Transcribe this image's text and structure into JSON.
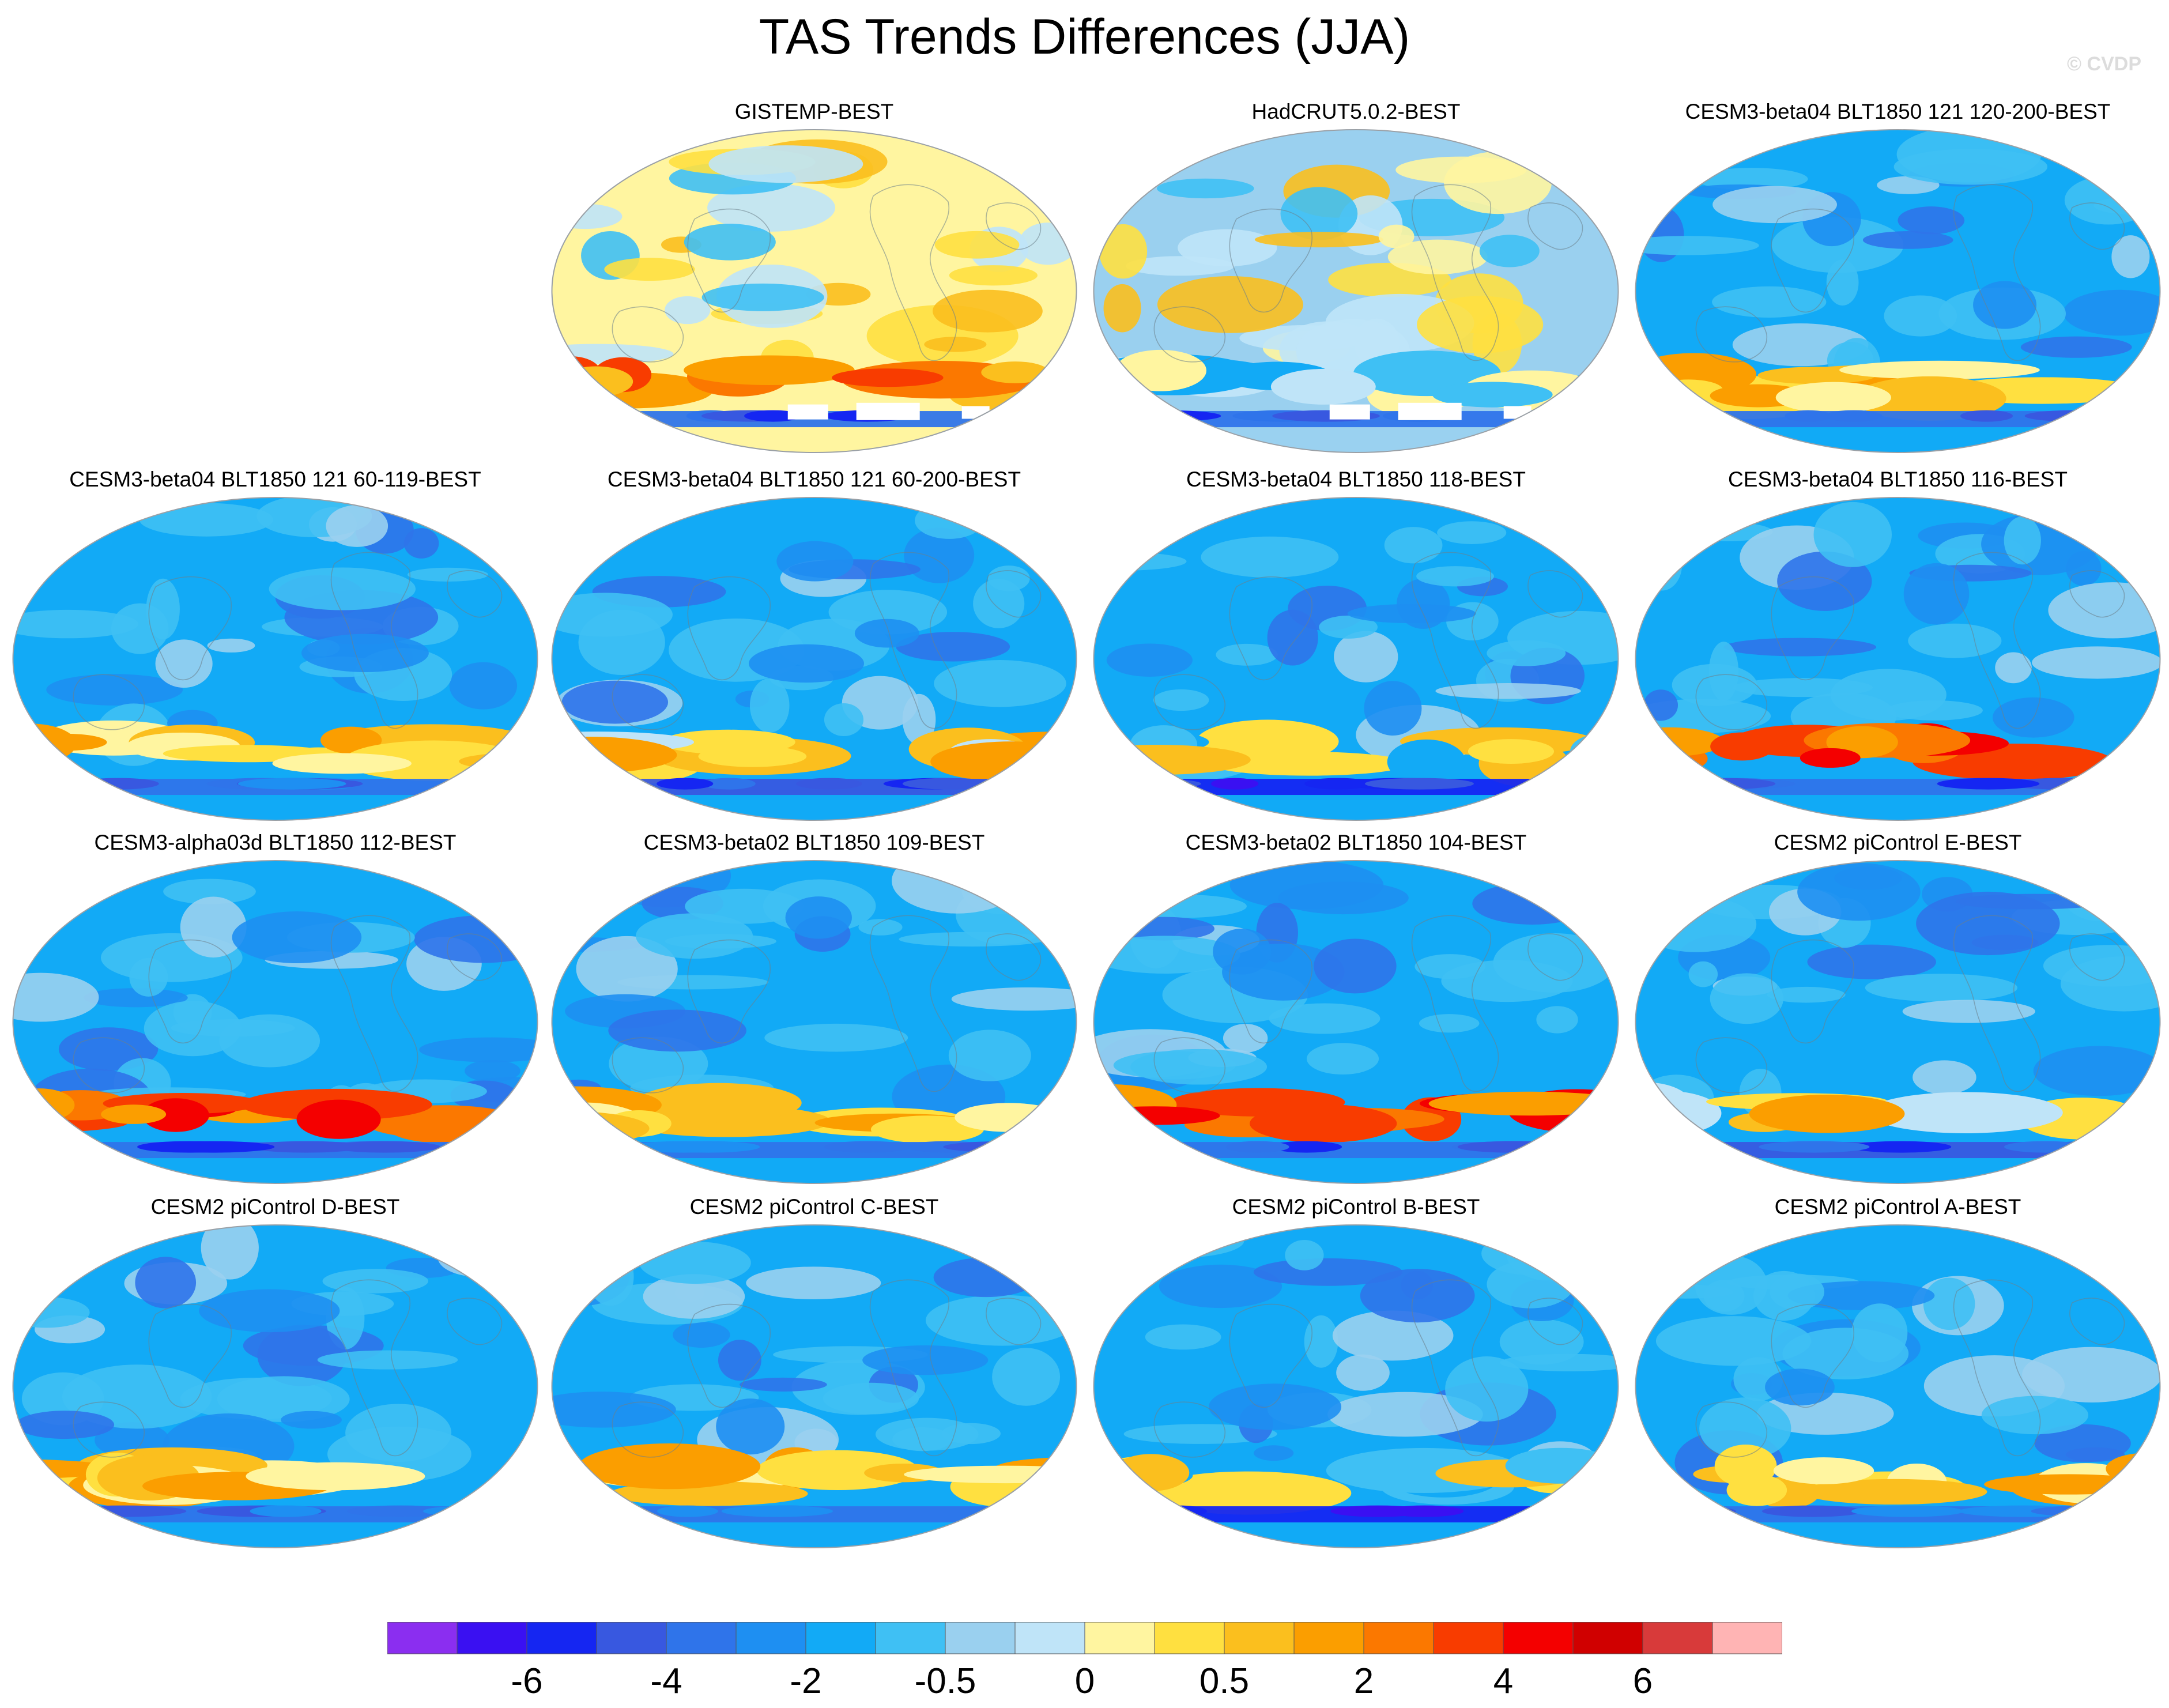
{
  "title": "TAS Trends Differences (JJA)",
  "copyright": "© CVDP",
  "panels": [
    {
      "label": "GISTEMP-BEST",
      "pattern": "warm",
      "missing": true
    },
    {
      "label": "HadCRUT5.0.2-BEST",
      "pattern": "mixed",
      "missing": true
    },
    {
      "label": "CESM3-beta04 BLT1850 121 120-200-BEST",
      "pattern": "cool-south-warm"
    },
    {
      "label": "CESM3-beta04 BLT1850 121 60-119-BEST",
      "pattern": "cool-south-warm"
    },
    {
      "label": "CESM3-beta04 BLT1850 121 60-200-BEST",
      "pattern": "cool-south-mixed"
    },
    {
      "label": "CESM3-beta04 BLT1850 118-BEST",
      "pattern": "cool-south-cold"
    },
    {
      "label": "CESM3-beta04 BLT1850 116-BEST",
      "pattern": "cool-south-hot"
    },
    {
      "label": "CESM3-alpha03d BLT1850 112-BEST",
      "pattern": "cool-south-hot"
    },
    {
      "label": "CESM3-beta02 BLT1850 109-BEST",
      "pattern": "cool-south-warm"
    },
    {
      "label": "CESM3-beta02 BLT1850 104-BEST",
      "pattern": "cool-south-hot"
    },
    {
      "label": "CESM2 piControl E-BEST",
      "pattern": "cool-south-mixed"
    },
    {
      "label": "CESM2 piControl D-BEST",
      "pattern": "cool-south-warm"
    },
    {
      "label": "CESM2 piControl C-BEST",
      "pattern": "cool-south-warm"
    },
    {
      "label": "CESM2 piControl B-BEST",
      "pattern": "cool-south-cold"
    },
    {
      "label": "CESM2 piControl A-BEST",
      "pattern": "cool-south-warm"
    }
  ],
  "colorbar": {
    "colors": [
      "#8b2ef0",
      "#3a10f2",
      "#1526f2",
      "#3858e0",
      "#2f74ea",
      "#1e8ff2",
      "#12aaf6",
      "#3fc0f4",
      "#9ad0ef",
      "#bfe4f8",
      "#fff5a0",
      "#ffe040",
      "#fbbf1e",
      "#fb9e00",
      "#fb7800",
      "#f83c00",
      "#f40000",
      "#d00000",
      "#d83a3a",
      "#ffb4b4"
    ],
    "labels": [
      "-6",
      "-4",
      "-2",
      "-0.5",
      "0",
      "0.5",
      "2",
      "4",
      "6"
    ]
  }
}
